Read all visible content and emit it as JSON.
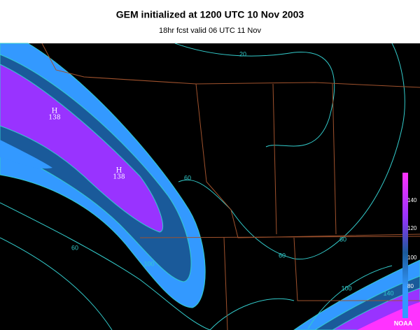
{
  "header": {
    "title": "GEM initialized at 1200 UTC  10 Nov 2003",
    "subtitle": "18hr fcst valid 06 UTC 11 Nov"
  },
  "map": {
    "contour_labels": [
      20,
      60,
      60,
      100,
      60,
      60,
      100,
      140
    ],
    "highs": [
      {
        "symbol": "H",
        "value": 138
      },
      {
        "symbol": "H",
        "value": 138
      }
    ],
    "colorbar_ticks": [
      140,
      120,
      100,
      80
    ],
    "credit": "NOAA"
  }
}
